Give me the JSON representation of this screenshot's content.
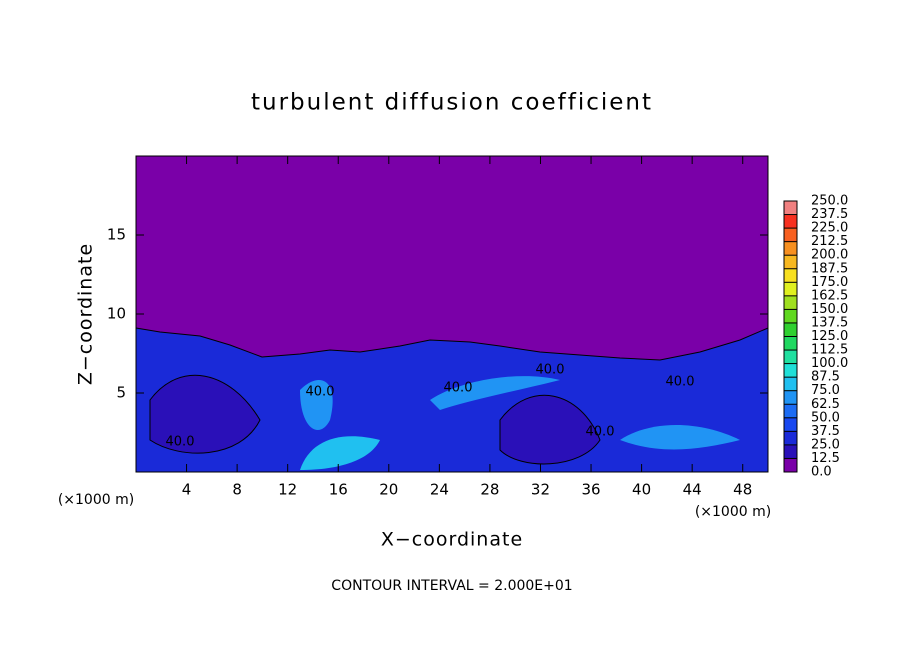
{
  "chart_data": {
    "type": "contour",
    "title": "turbulent diffusion coefficient",
    "x_label": "X−coordinate",
    "y_label": "Z−coordinate",
    "x_unit_left": "(×1000 m)",
    "x_unit_right": "(×1000 m)",
    "annotation": "CONTOUR INTERVAL = 2.000E+01",
    "xlim": [
      0,
      50
    ],
    "ylim": [
      0,
      20
    ],
    "xticks": [
      4,
      8,
      12,
      16,
      20,
      24,
      28,
      32,
      36,
      40,
      44,
      48
    ],
    "yticks": [
      5,
      10,
      15
    ],
    "contour_labels": [
      "40.0",
      "40.0",
      "40.0",
      "40.0",
      "40.0",
      "40.0"
    ],
    "colorbar": {
      "lim": [
        0,
        250
      ],
      "ticks": [
        {
          "value": 0,
          "label": "0.0"
        },
        {
          "value": 12.5,
          "label": "12.5"
        },
        {
          "value": 25,
          "label": "25.0"
        },
        {
          "value": 37.5,
          "label": "37.5"
        },
        {
          "value": 50,
          "label": "50.0"
        },
        {
          "value": 62.5,
          "label": "62.5"
        },
        {
          "value": 75,
          "label": "75.0"
        },
        {
          "value": 87.5,
          "label": "87.5"
        },
        {
          "value": 100,
          "label": "100.0"
        },
        {
          "value": 112.5,
          "label": "112.5"
        },
        {
          "value": 125,
          "label": "125.0"
        },
        {
          "value": 137.5,
          "label": "137.5"
        },
        {
          "value": 150,
          "label": "150.0"
        },
        {
          "value": 162.5,
          "label": "162.5"
        },
        {
          "value": 175,
          "label": "175.0"
        },
        {
          "value": 187.5,
          "label": "187.5"
        },
        {
          "value": 200,
          "label": "200.0"
        },
        {
          "value": 212.5,
          "label": "212.5"
        },
        {
          "value": 225,
          "label": "225.0"
        },
        {
          "value": 237.5,
          "label": "237.5"
        },
        {
          "value": 250,
          "label": "250.0"
        }
      ],
      "colors": [
        "#7a00a8",
        "#2a10b8",
        "#1a2ad8",
        "#1848f0",
        "#1c6cf4",
        "#2094f4",
        "#20c0f0",
        "#20e0d8",
        "#20e0a0",
        "#20d860",
        "#30d030",
        "#60d820",
        "#a0e020",
        "#e0f020",
        "#f8e020",
        "#f8b820",
        "#f89020",
        "#f86020",
        "#f83020",
        "#f08080"
      ]
    }
  }
}
